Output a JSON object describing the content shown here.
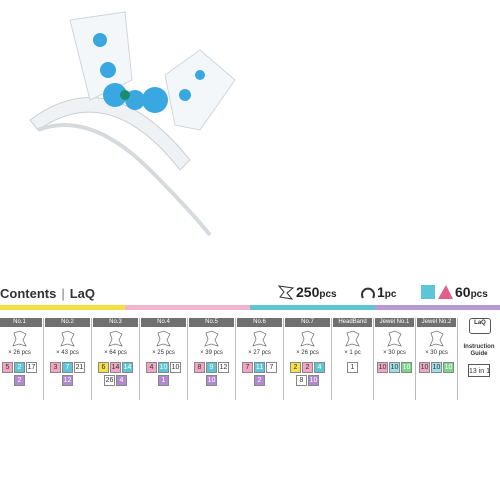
{
  "header": {
    "title": "Contents",
    "brand": "LaQ",
    "totals": [
      {
        "number": "250",
        "unit": "pcs"
      },
      {
        "number": "1",
        "unit": "pc"
      },
      {
        "number": "60",
        "unit": "pcs"
      }
    ]
  },
  "stripe": [
    "#f3df3f",
    "#f1b5cb",
    "#5fc4d4",
    "#b89ad6"
  ],
  "columns": [
    {
      "label": "No.1",
      "count": "× 26 pcs",
      "boxes": [
        [
          {
            "value": 5,
            "color": "#f0a6c4"
          },
          {
            "value": 2,
            "color": "#5cc6d6"
          },
          {
            "value": 17,
            "color": "#ffffff"
          }
        ],
        [
          {
            "value": 2,
            "color": "#b08ad0"
          }
        ]
      ]
    },
    {
      "label": "No.2",
      "count": "× 43 pcs",
      "boxes": [
        [
          {
            "value": 3,
            "color": "#f0a6c4"
          },
          {
            "value": 7,
            "color": "#5cc6d6"
          },
          {
            "value": 21,
            "color": "#ffffff"
          }
        ],
        [
          {
            "value": 12,
            "color": "#b08ad0"
          }
        ]
      ]
    },
    {
      "label": "No.3",
      "count": "× 64 pcs",
      "boxes": [
        [
          {
            "value": 6,
            "color": "#f5e04a"
          },
          {
            "value": 14,
            "color": "#f0a6c4"
          },
          {
            "value": 14,
            "color": "#5cc6d6"
          }
        ],
        [
          {
            "value": 26,
            "color": "#ffffff"
          },
          {
            "value": 4,
            "color": "#b08ad0"
          }
        ]
      ]
    },
    {
      "label": "No.4",
      "count": "× 25 pcs",
      "boxes": [
        [
          {
            "value": 4,
            "color": "#f0a6c4"
          },
          {
            "value": 10,
            "color": "#5cc6d6"
          },
          {
            "value": 10,
            "color": "#ffffff"
          }
        ],
        [
          {
            "value": 1,
            "color": "#b08ad0"
          }
        ]
      ]
    },
    {
      "label": "No.5",
      "count": "× 39 pcs",
      "boxes": [
        [
          {
            "value": 8,
            "color": "#f0a6c4"
          },
          {
            "value": 9,
            "color": "#5cc6d6"
          },
          {
            "value": 12,
            "color": "#ffffff"
          }
        ],
        [
          {
            "value": 10,
            "color": "#b08ad0"
          }
        ]
      ]
    },
    {
      "label": "No.6",
      "count": "× 27 pcs",
      "boxes": [
        [
          {
            "value": 7,
            "color": "#f0a6c4"
          },
          {
            "value": 11,
            "color": "#5cc6d6"
          },
          {
            "value": 7,
            "color": "#ffffff"
          }
        ],
        [
          {
            "value": 2,
            "color": "#b08ad0"
          }
        ]
      ]
    },
    {
      "label": "No.7",
      "count": "× 26 pcs",
      "boxes": [
        [
          {
            "value": 2,
            "color": "#f5e04a"
          },
          {
            "value": 2,
            "color": "#f0a6c4"
          },
          {
            "value": 4,
            "color": "#5cc6d6"
          }
        ],
        [
          {
            "value": 8,
            "color": "#ffffff"
          },
          {
            "value": 10,
            "color": "#b08ad0"
          }
        ]
      ]
    },
    {
      "label": "HeadBand",
      "count": "× 1 pc",
      "boxes": [
        [
          {
            "value": 1,
            "color": "#ffffff"
          }
        ]
      ]
    },
    {
      "label": "Jewel No.1",
      "count": "× 30 pcs",
      "boxes": [
        [
          {
            "value": 10,
            "color": "#f0a6c4"
          },
          {
            "value": 10,
            "color": "#9ee0ea"
          },
          {
            "value": 10,
            "color": "#7cd68a"
          }
        ]
      ]
    },
    {
      "label": "Jewel No.2",
      "count": "× 30 pcs",
      "boxes": [
        [
          {
            "value": 10,
            "color": "#f0a6c4"
          },
          {
            "value": 10,
            "color": "#9ee0ea"
          },
          {
            "value": 10,
            "color": "#7cd68a"
          }
        ]
      ]
    }
  ],
  "guide": {
    "icon_text": "LaQ",
    "label": "Instruction Guide",
    "set": "13 in 1"
  }
}
